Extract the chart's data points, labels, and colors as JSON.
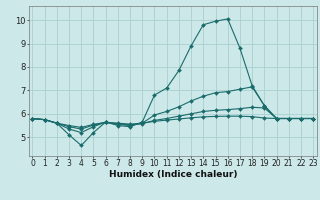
{
  "xlabel": "Humidex (Indice chaleur)",
  "background_color": "#cce8e8",
  "grid_color": "#aad0d0",
  "line_color": "#1a6b6b",
  "xticks": [
    0,
    1,
    2,
    3,
    4,
    5,
    6,
    7,
    8,
    9,
    10,
    11,
    12,
    13,
    14,
    15,
    16,
    17,
    18,
    19,
    20,
    21,
    22,
    23
  ],
  "yticks": [
    5,
    6,
    7,
    8,
    9,
    10
  ],
  "xlim": [
    -0.3,
    23.3
  ],
  "ylim": [
    4.2,
    10.6
  ],
  "line1_x": [
    0,
    1,
    2,
    3,
    4,
    5,
    6,
    7,
    8,
    9,
    10,
    11,
    12,
    13,
    14,
    15,
    16,
    17,
    18,
    19,
    20,
    21,
    22,
    23
  ],
  "line1_y": [
    5.8,
    5.75,
    5.6,
    5.1,
    4.65,
    5.2,
    5.65,
    5.5,
    5.45,
    5.65,
    6.8,
    7.1,
    7.85,
    8.9,
    9.8,
    9.95,
    10.05,
    8.8,
    7.2,
    6.35,
    5.8,
    5.8,
    5.8,
    5.8
  ],
  "line2_x": [
    0,
    1,
    2,
    3,
    4,
    5,
    6,
    7,
    8,
    9,
    10,
    11,
    12,
    13,
    14,
    15,
    16,
    17,
    18,
    19,
    20,
    21,
    22,
    23
  ],
  "line2_y": [
    5.8,
    5.75,
    5.6,
    5.35,
    5.2,
    5.45,
    5.65,
    5.55,
    5.5,
    5.6,
    5.95,
    6.1,
    6.3,
    6.55,
    6.75,
    6.9,
    6.95,
    7.05,
    7.15,
    6.35,
    5.8,
    5.8,
    5.8,
    5.8
  ],
  "line3_x": [
    0,
    1,
    2,
    3,
    4,
    5,
    6,
    7,
    8,
    9,
    10,
    11,
    12,
    13,
    14,
    15,
    16,
    17,
    18,
    19,
    20,
    21,
    22,
    23
  ],
  "line3_y": [
    5.8,
    5.75,
    5.6,
    5.45,
    5.35,
    5.52,
    5.63,
    5.58,
    5.53,
    5.58,
    5.72,
    5.8,
    5.9,
    6.0,
    6.1,
    6.15,
    6.18,
    6.22,
    6.28,
    6.25,
    5.8,
    5.8,
    5.8,
    5.8
  ],
  "line4_x": [
    0,
    1,
    2,
    3,
    4,
    5,
    6,
    7,
    8,
    9,
    10,
    11,
    12,
    13,
    14,
    15,
    16,
    17,
    18,
    19,
    20,
    21,
    22,
    23
  ],
  "line4_y": [
    5.8,
    5.75,
    5.6,
    5.5,
    5.42,
    5.55,
    5.64,
    5.6,
    5.56,
    5.6,
    5.68,
    5.73,
    5.78,
    5.83,
    5.87,
    5.89,
    5.9,
    5.9,
    5.88,
    5.82,
    5.8,
    5.8,
    5.8,
    5.8
  ],
  "tick_fontsize": 5.5,
  "xlabel_fontsize": 6.5
}
